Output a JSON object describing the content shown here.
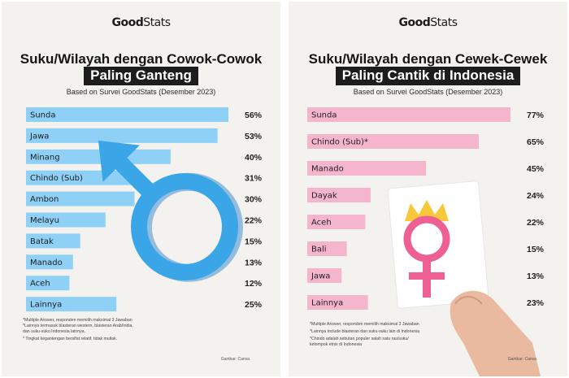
{
  "logo": {
    "good": "Good",
    "stats": "Stats"
  },
  "colors": {
    "male_bar": "#8fd0f7",
    "female_bar": "#f5b6cd",
    "male_symbol": "#3aa6e8",
    "female_symbol": "#ee5f93",
    "crown": "#f7c93a"
  },
  "chart_data": [
    {
      "type": "bar",
      "orientation": "horizontal",
      "title_line1": "Suku/Wilayah dengan Cowok-Cowok",
      "title_line2": "Paling Ganteng",
      "subtitle": "Based on Survei GoodStats (Desember 2023)",
      "categories": [
        "Sunda",
        "Jawa",
        "Minang",
        "Chindo (Sub)",
        "Ambon",
        "Melayu",
        "Batak",
        "Manado",
        "Aceh",
        "Lainnya"
      ],
      "values": [
        56,
        53,
        40,
        31,
        30,
        22,
        15,
        13,
        12,
        25
      ],
      "value_labels": [
        "56%",
        "53%",
        "40%",
        "31%",
        "30%",
        "22%",
        "15%",
        "13%",
        "12%",
        "25%"
      ],
      "xlim": [
        0,
        56
      ],
      "footnotes": [
        "*Multiple Answer, responden memilih maksimal 3 Jawaban",
        "*Lainnya termasuk blasteran western, blasteran Arab/India,",
        "dan suku-suku Indonesia lainnya.",
        "* Tingkat kegantengan bersifat relatif, tidak mutlak."
      ],
      "credit": "Gambar: Canva"
    },
    {
      "type": "bar",
      "orientation": "horizontal",
      "title_line1": "Suku/Wilayah dengan Cewek-Cewek",
      "title_line2": "Paling Cantik di Indonesia",
      "subtitle": "Based on Survei GoodStats (Desember 2023)",
      "categories": [
        "Sunda",
        "Chindo (Sub)*",
        "Manado",
        "Dayak",
        "Aceh",
        "Bali",
        "Jawa",
        "Lainnya"
      ],
      "values": [
        77,
        65,
        45,
        24,
        22,
        15,
        13,
        23
      ],
      "value_labels": [
        "77%",
        "65%",
        "45%",
        "24%",
        "22%",
        "15%",
        "13%",
        "23%"
      ],
      "xlim": [
        0,
        77
      ],
      "footnotes": [
        "*Multiple Answer, responden memilih maksimal 3 Jawaban",
        "*Lainnya include blasteran dan suku-suku lain di Indonesia",
        "*Chindo adalah sebutan populer salah satu ras/suku/",
        "kelompok etnis di Indonesia"
      ],
      "credit": "Gambar: Canva"
    }
  ]
}
